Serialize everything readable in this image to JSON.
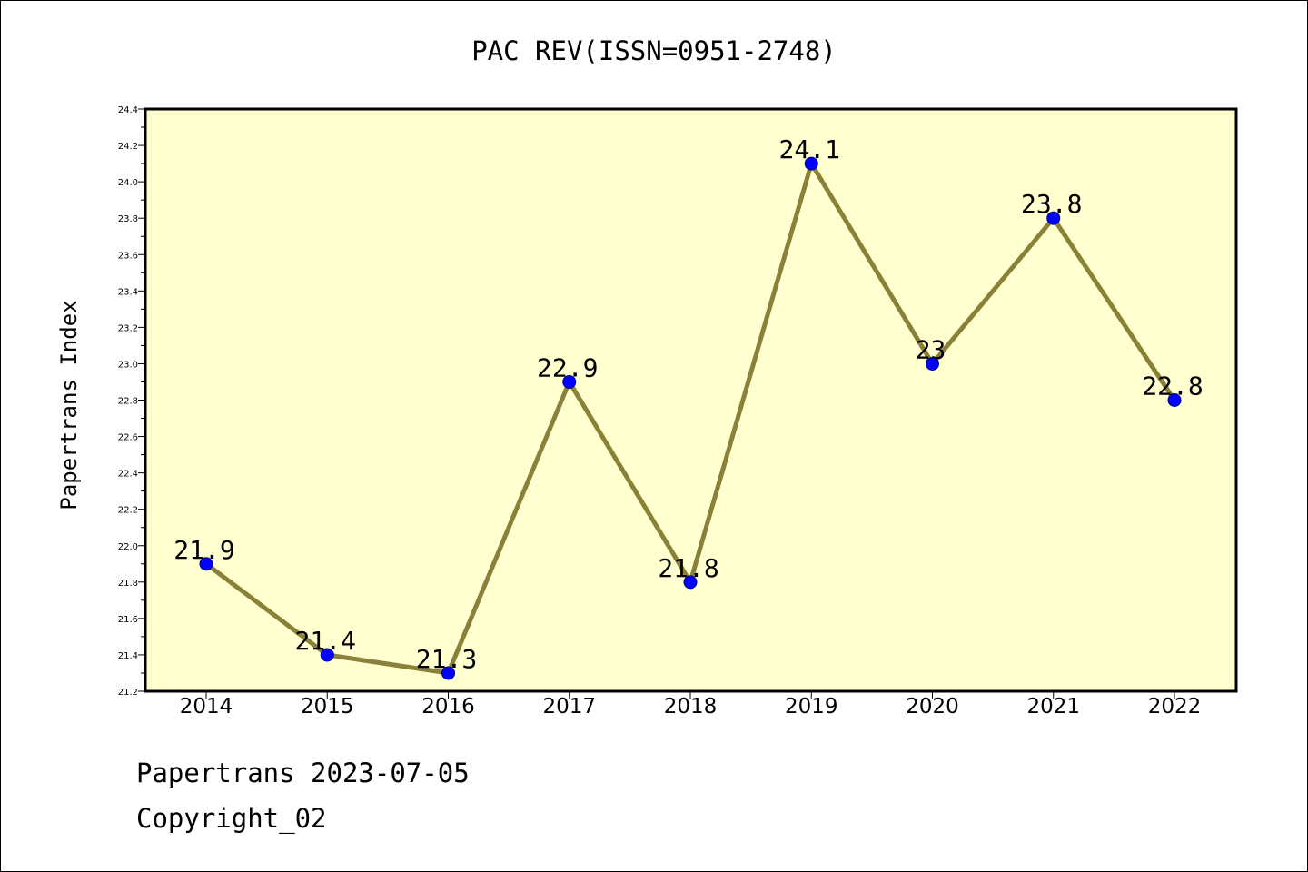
{
  "chart_data": {
    "type": "line",
    "title": "PAC REV(ISSN=0951-2748)",
    "xlabel": "",
    "ylabel": "Papertrans Index",
    "categories": [
      "2014",
      "2015",
      "2016",
      "2017",
      "2018",
      "2019",
      "2020",
      "2021",
      "2022"
    ],
    "series": [
      {
        "values": [
          21.9,
          21.4,
          21.3,
          22.9,
          21.8,
          24.1,
          23.0,
          23.8,
          22.8
        ],
        "labels": [
          "21.9",
          "21.4",
          "21.3",
          "22.9",
          "21.8",
          "24.1",
          "23",
          "23.8",
          "22.8"
        ]
      }
    ],
    "ylim": [
      21.2,
      24.4
    ],
    "yticks": [
      "21.2",
      "21.4",
      "21.6",
      "21.8",
      "22.0",
      "22.2",
      "22.4",
      "22.6",
      "22.8",
      "23.0",
      "23.2",
      "23.4",
      "23.6",
      "23.8",
      "24.0",
      "24.2",
      "24.4"
    ],
    "grid": false,
    "legend": "none",
    "colors": {
      "plot_background": "#ffffd0",
      "line": "#8b8038",
      "marker": "#0000ff",
      "axis": "#000000"
    }
  },
  "footer": {
    "line1": "Papertrans 2023-07-05",
    "line2": "Copyright_02"
  }
}
